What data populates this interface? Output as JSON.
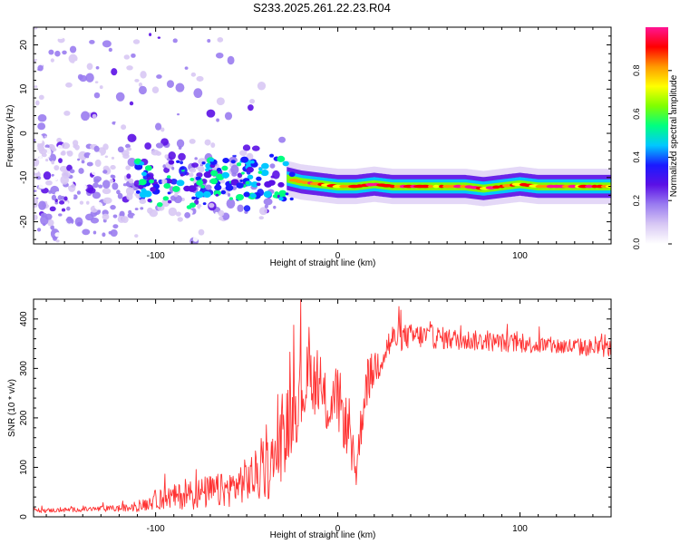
{
  "figure_title": "S233.2025.261.22.23.R04",
  "chart_data": [
    {
      "type": "heatmap",
      "title": "S233.2025.261.22.23.R04",
      "xlabel": "Height of straight line (km)",
      "ylabel": "Frequency (Hz)",
      "xlim": [
        -167,
        150
      ],
      "ylim": [
        -25,
        24
      ],
      "xticks": [
        -100,
        0,
        100
      ],
      "xtick_labels": [
        "-100",
        "0",
        "100"
      ],
      "yticks": [
        -20,
        -10,
        0,
        10,
        20
      ],
      "ytick_labels": [
        "-20",
        "-10",
        "0",
        "10",
        "20"
      ],
      "colorbar": {
        "label": "Normalized spectral amplitude",
        "range": [
          0,
          1
        ],
        "ticks": [
          0,
          0.2,
          0.4,
          0.6,
          0.8
        ],
        "tick_labels": [
          "0.0",
          "0.2",
          "0.4",
          "0.6",
          "0.8"
        ],
        "colors": [
          "#ffffff",
          "#d8c8f4",
          "#9a7cf0",
          "#5b10e6",
          "#1a1aff",
          "#00c8ff",
          "#00ff80",
          "#7fff00",
          "#ffff00",
          "#ff9900",
          "#ff0000",
          "#ff1493"
        ]
      },
      "features": [
        {
          "name": "scattered noise",
          "x_range": [
            -167,
            -30
          ],
          "freq_range": [
            -25,
            24
          ],
          "amplitude": 0.15
        },
        {
          "name": "signal line",
          "x_range": [
            -28,
            150
          ],
          "freq_center": -12,
          "amplitude": 0.95
        }
      ],
      "signal_track": {
        "x": [
          -110,
          -100,
          -90,
          -80,
          -70,
          -60,
          -50,
          -40,
          -30,
          -20,
          -10,
          0,
          10,
          20,
          30,
          40,
          50,
          60,
          70,
          80,
          90,
          100,
          110,
          120,
          130,
          140,
          150
        ],
        "freq": [
          -11,
          -12,
          -11,
          -12,
          -11,
          -10,
          -10,
          -9,
          -10,
          -11,
          -11.5,
          -12,
          -12,
          -11.5,
          -12,
          -12,
          -12,
          -12,
          -12,
          -12.5,
          -12,
          -11.5,
          -12,
          -12,
          -12,
          -12,
          -12
        ]
      }
    },
    {
      "type": "line",
      "xlabel": "Height of straight line (km)",
      "ylabel": "SNR (10 * v/v)",
      "xlim": [
        -167,
        150
      ],
      "ylim": [
        0,
        440
      ],
      "xticks": [
        -100,
        0,
        100
      ],
      "xtick_labels": [
        "-100",
        "0",
        "100"
      ],
      "yticks": [
        0,
        100,
        200,
        300,
        400
      ],
      "ytick_labels": [
        "0",
        "100",
        "200",
        "300",
        "400"
      ],
      "series": [
        {
          "name": "SNR",
          "color": "#ff3333",
          "x": [
            -167,
            -140,
            -110,
            -100,
            -90,
            -80,
            -70,
            -60,
            -50,
            -40,
            -35,
            -30,
            -25,
            -20,
            -15,
            -10,
            -5,
            0,
            5,
            10,
            15,
            20,
            25,
            30,
            40,
            50,
            60,
            80,
            100,
            120,
            150
          ],
          "y": [
            12,
            15,
            18,
            35,
            40,
            45,
            50,
            55,
            75,
            90,
            110,
            160,
            210,
            250,
            290,
            250,
            220,
            240,
            180,
            90,
            260,
            300,
            330,
            360,
            365,
            365,
            360,
            355,
            350,
            345,
            340
          ],
          "noise_amplitude": [
            4,
            5,
            8,
            20,
            25,
            30,
            35,
            35,
            45,
            60,
            70,
            80,
            80,
            80,
            70,
            60,
            60,
            70,
            60,
            40,
            50,
            40,
            40,
            30,
            25,
            25,
            22,
            20,
            18,
            18,
            18
          ]
        }
      ]
    }
  ]
}
